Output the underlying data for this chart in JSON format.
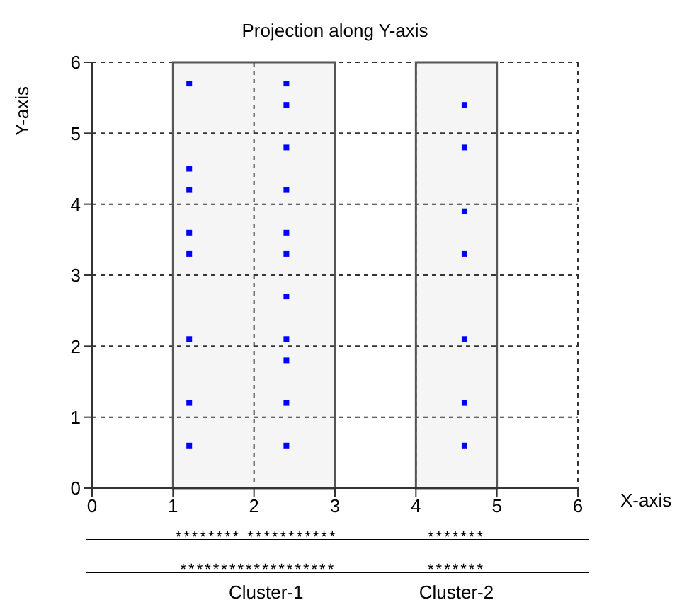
{
  "chart_data": {
    "type": "scatter",
    "title": "Projection along Y-axis",
    "xlabel": "X-axis",
    "ylabel": "Y-axis",
    "series": [
      {
        "color": "#0000ff",
        "x": [
          1.2,
          1.2,
          1.2,
          1.2,
          1.2,
          1.2,
          1.2,
          1.2
        ],
        "values": [
          5.7,
          4.5,
          4.2,
          3.6,
          3.3,
          2.1,
          1.2,
          0.6
        ]
      },
      {
        "color": "#0000ff",
        "x": [
          2.4,
          2.4,
          2.4,
          2.4,
          2.4,
          2.4,
          2.4,
          2.4,
          2.4,
          2.4,
          2.4
        ],
        "values": [
          5.7,
          5.4,
          4.8,
          4.2,
          3.6,
          3.3,
          2.7,
          2.1,
          1.8,
          1.2,
          0.6
        ]
      },
      {
        "color": "#0000ff",
        "x": [
          4.6,
          4.6,
          4.6,
          4.6,
          4.6,
          4.6,
          4.6
        ],
        "values": [
          5.4,
          4.8,
          3.9,
          3.3,
          2.1,
          1.2,
          0.6
        ]
      }
    ],
    "marker": "square",
    "xlim": [
      0,
      6
    ],
    "xticks": [
      0,
      1,
      2,
      3,
      4,
      5,
      6
    ],
    "ylim": [
      0,
      6
    ],
    "yticks": [
      0,
      1,
      2,
      3,
      4,
      5,
      6
    ],
    "grid": true,
    "bands": [
      {
        "axis": "x",
        "from": 1,
        "to": 3,
        "color": "#555555"
      },
      {
        "axis": "x",
        "from": 4,
        "to": 5,
        "color": "#555555"
      }
    ],
    "annotations": [
      "******** ***********",
      "*******",
      "*******************",
      "*******",
      "Cluster-1",
      "Cluster-2"
    ]
  }
}
